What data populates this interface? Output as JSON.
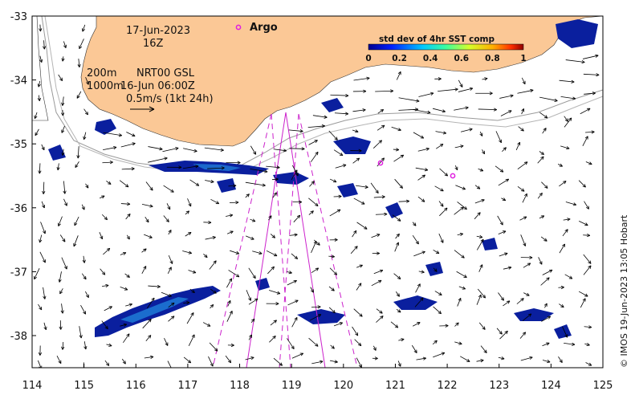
{
  "annotations": {
    "date": "17-Jun-2023",
    "time": "16Z",
    "depth_200": "200m",
    "product": "NRT00 GSL",
    "depth_1000": "1000m",
    "ref_time": "16-Jun 06:00Z",
    "arrow_scale": "0.5m/s (1kt 24h)"
  },
  "argo": {
    "label": "Argo"
  },
  "colorbar": {
    "title": "std dev of 4hr SST comp",
    "ticks": [
      "0",
      "0.2",
      "0.4",
      "0.6",
      "0.8",
      "1"
    ]
  },
  "axes": {
    "x_ticks": [
      "114",
      "115",
      "116",
      "117",
      "118",
      "119",
      "120",
      "121",
      "122",
      "123",
      "124",
      "125"
    ],
    "y_ticks": [
      "-33",
      "-34",
      "-35",
      "-36",
      "-37",
      "-38"
    ]
  },
  "credit": "© IMOS 19-Jun-2023 13:05 Hobart",
  "colors": {
    "land": "#fbc896",
    "sst_low": "#0a1f9e",
    "sst_mid": "#1f7bd6",
    "argo": "#e01ee0",
    "track": "#cc22cc",
    "arrow": "#000000",
    "bathymetry": "#9a9a9a"
  },
  "icons": [
    "argo-float-marker-icon",
    "scale-arrow-icon",
    "velocity-arrow-icon"
  ]
}
